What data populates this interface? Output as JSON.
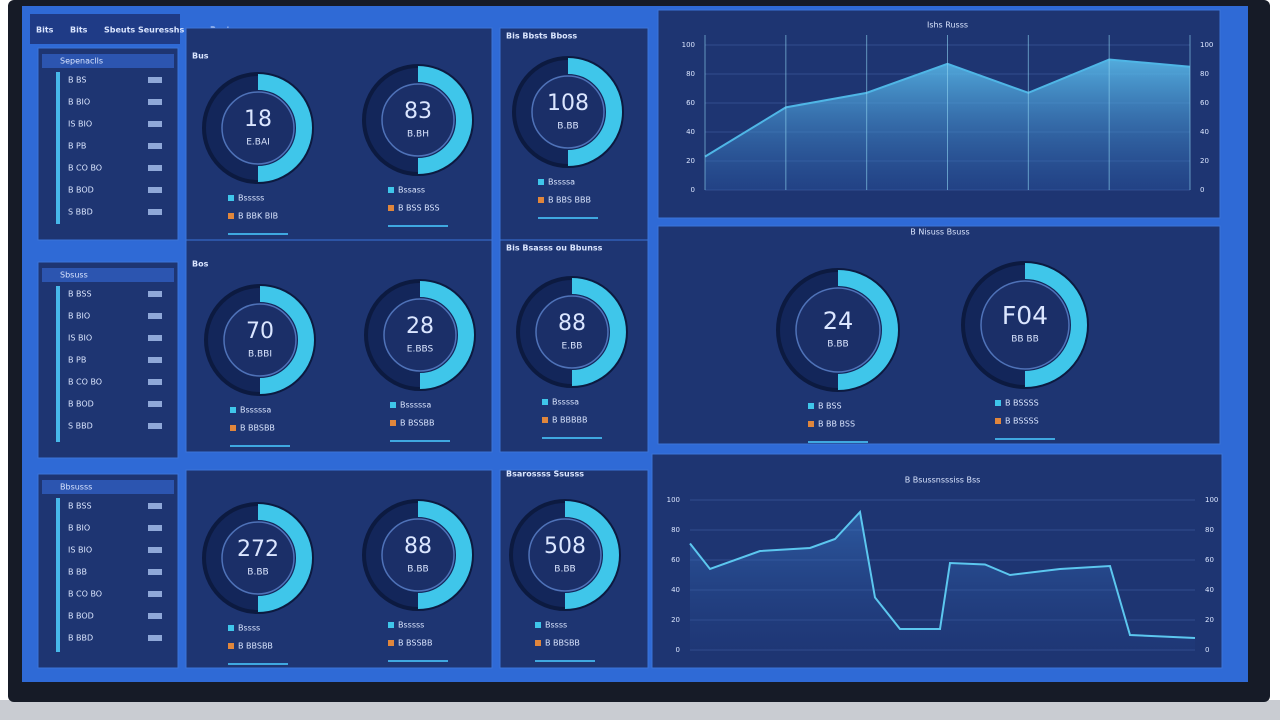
{
  "topbar": {
    "tabs": [
      "Bits",
      "Bits",
      "Sbeuts Seuresshs",
      "Bosts"
    ]
  },
  "sidebars": [
    {
      "title": "Sepenaclls",
      "items": [
        "B BS",
        "B BIO",
        "IS BIO",
        "B PB",
        "B CO BO",
        "B BOD",
        "S BBD"
      ]
    },
    {
      "title": "Sbsuss",
      "items": [
        "B BSS",
        "B BIO",
        "IS BIO",
        "B PB",
        "B CO BO",
        "B BOD",
        "S BBD"
      ]
    },
    {
      "title": "Bbsusss",
      "items": [
        "B BSS",
        "B BIO",
        "IS BIO",
        "B BB",
        "B CO BO",
        "B BOD",
        "B BBD"
      ]
    }
  ],
  "panel_headers": [
    "Bus",
    "Bis Bbsts Bboss",
    "Bos",
    "Bis Bsasss ou Bbunss",
    "Bsarossss Ssusss"
  ],
  "gauges": [
    {
      "value": "18",
      "sub": "E.BAI",
      "captions": [
        "Bsssss",
        "B BBK BIB"
      ]
    },
    {
      "value": "83",
      "sub": "B.BH",
      "captions": [
        "Bssass",
        "B BSS BSS"
      ]
    },
    {
      "value": "108",
      "sub": "B.BB",
      "captions": [
        "Bssssa",
        "B BBS BBB"
      ]
    },
    {
      "value": "70",
      "sub": "B.BBI",
      "captions": [
        "Bsssssa",
        "B BBSBB"
      ]
    },
    {
      "value": "28",
      "sub": "E.BBS",
      "captions": [
        "Bsssssa",
        "B BSSBB"
      ]
    },
    {
      "value": "88",
      "sub": "E.BB",
      "captions": [
        "Bssssa",
        "B BBBBB"
      ]
    },
    {
      "value": "272",
      "sub": "B.BB",
      "captions": [
        "Bssss",
        "B BBSBB"
      ]
    },
    {
      "value": "88",
      "sub": "B.BB",
      "captions": [
        "Bsssss",
        "B BSSBB"
      ]
    },
    {
      "value": "508",
      "sub": "B.BB",
      "captions": [
        "Bssss",
        "B BBSBB"
      ]
    },
    {
      "value": "24",
      "sub": "B.BB",
      "captions": [
        "B BSS",
        "B BB BSS"
      ]
    },
    {
      "value": "F04",
      "sub": "BB BB",
      "captions": [
        "B BSSSS",
        "B BSSSS"
      ]
    }
  ],
  "donut_panel_title": "B Nisuss Bsuss",
  "area_chart": {
    "type": "area",
    "title": "Ishs Russs",
    "color": "#4fb6e6",
    "values": [
      23,
      57,
      67,
      87,
      67,
      90,
      85
    ],
    "ylim": [
      0,
      100
    ],
    "yticks": [
      0,
      20,
      40,
      60,
      80,
      100
    ],
    "grid": true
  },
  "line_chart": {
    "type": "line",
    "title": "B Bsussnsssiss Bss",
    "color": "#5cc7ef",
    "x": [
      0,
      4,
      14,
      24,
      29,
      34,
      37,
      42,
      50,
      52,
      59,
      64,
      74,
      84,
      88,
      101
    ],
    "values": [
      71,
      54,
      66,
      68,
      74,
      92,
      35,
      14,
      14,
      58,
      57,
      50,
      54,
      56,
      10,
      8
    ],
    "xlim": [
      0,
      101
    ],
    "ylim": [
      0,
      100
    ],
    "yticks": [
      0,
      20,
      40,
      60,
      80,
      100
    ],
    "grid": true
  }
}
